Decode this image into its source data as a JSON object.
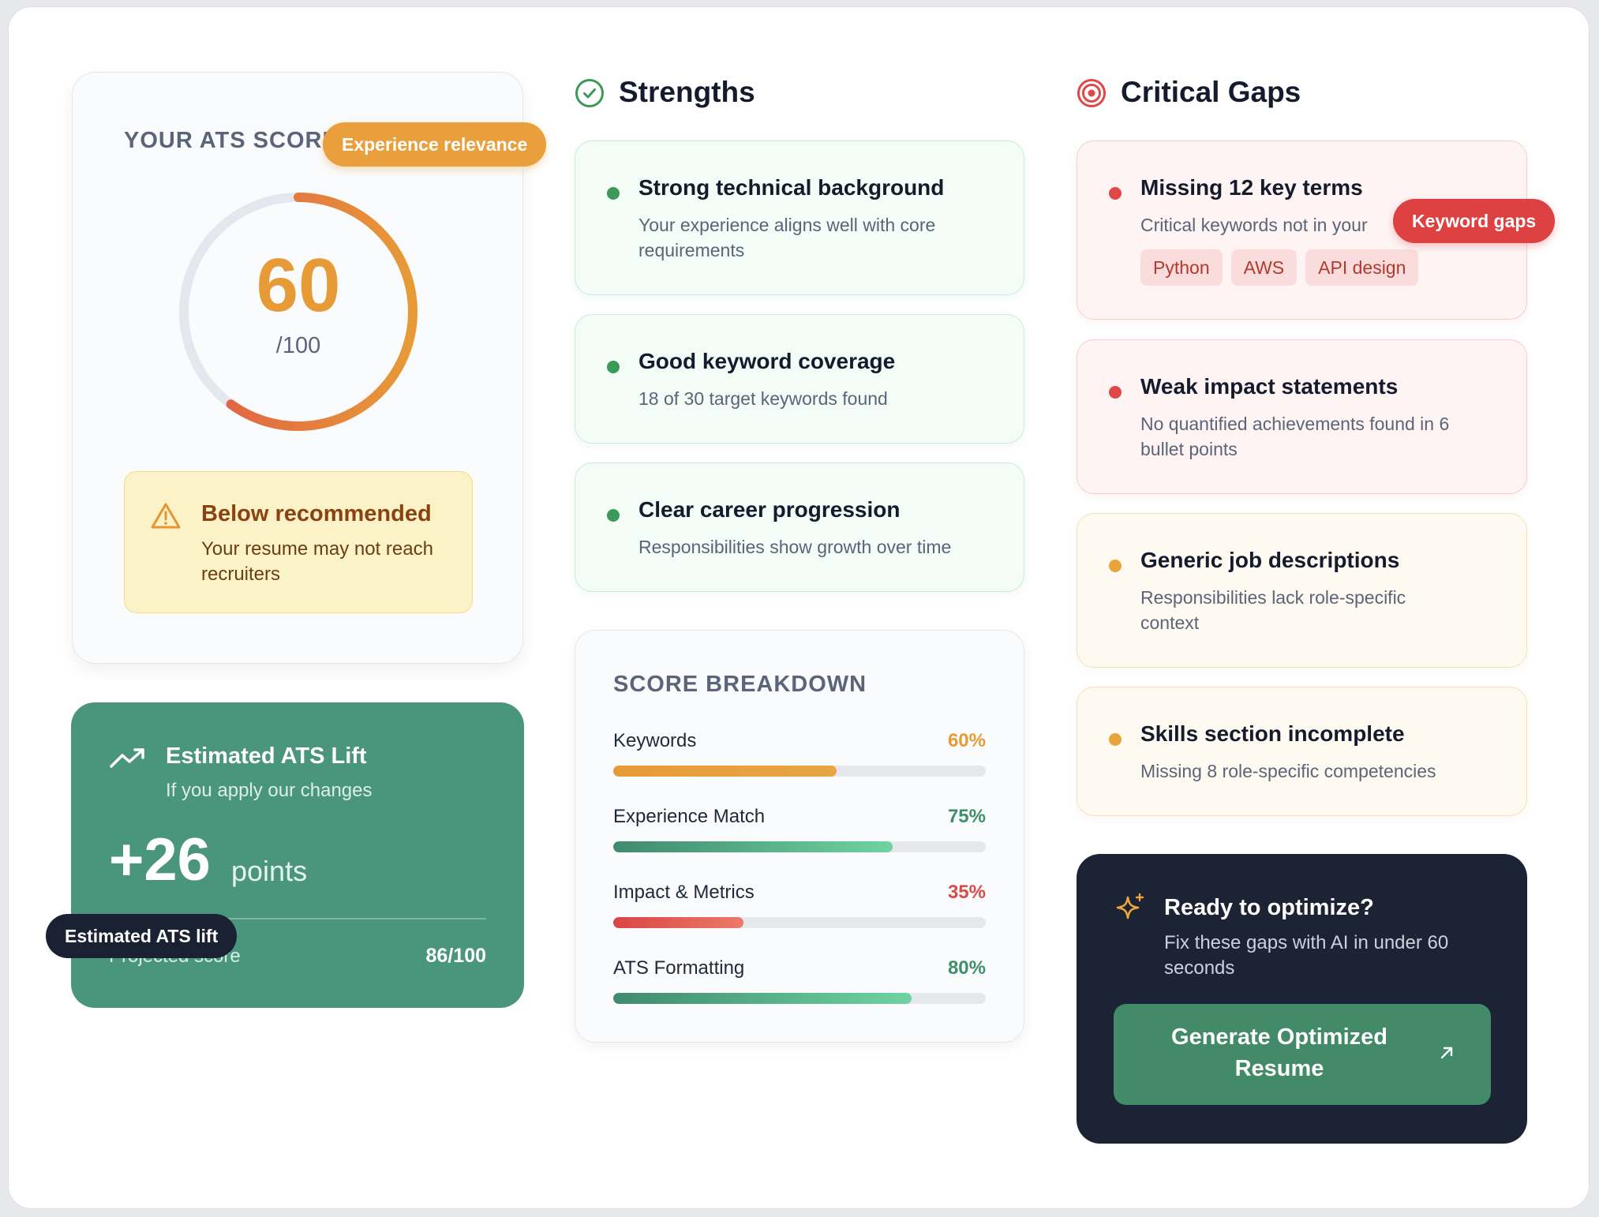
{
  "score_card": {
    "title": "YOUR ATS SCORE",
    "score": "60",
    "score_value": 60,
    "max": "/100",
    "warning_title": "Below recommended",
    "warning_text": "Your resume may not reach recruiters"
  },
  "tooltips": {
    "experience": "Experience relevance",
    "keyword_gaps": "Keyword gaps",
    "ats_lift": "Estimated ATS lift"
  },
  "lift_card": {
    "title": "Estimated ATS Lift",
    "subtitle": "If you apply our changes",
    "value": "+26",
    "unit": "points",
    "projected_label": "Projected score",
    "projected_value": "86/100"
  },
  "strengths": {
    "title": "Strengths",
    "items": [
      {
        "title": "Strong technical background",
        "desc": "Your experience aligns well with core requirements"
      },
      {
        "title": "Good keyword coverage",
        "desc": "18 of 30 target keywords found"
      },
      {
        "title": "Clear career progression",
        "desc": "Responsibilities show growth over time"
      }
    ]
  },
  "breakdown": {
    "title": "SCORE BREAKDOWN",
    "rows": [
      {
        "label": "Keywords",
        "value": "60%",
        "pct": 60,
        "color": "#e79b37"
      },
      {
        "label": "Experience Match",
        "value": "75%",
        "pct": 75,
        "color": "#3f8f6a"
      },
      {
        "label": "Impact & Metrics",
        "value": "35%",
        "pct": 35,
        "color": "#d94a4a"
      },
      {
        "label": "ATS Formatting",
        "value": "80%",
        "pct": 80,
        "color": "#3f8f6a"
      }
    ]
  },
  "gaps": {
    "title": "Critical Gaps",
    "items": [
      {
        "title": "Missing 12 key terms",
        "desc": "Critical keywords not in your",
        "severity": "high",
        "chips": [
          "Python",
          "AWS",
          "API design"
        ]
      },
      {
        "title": "Weak impact statements",
        "desc": "No quantified achievements found in 6 bullet points",
        "severity": "high"
      },
      {
        "title": "Generic job descriptions",
        "desc": "Responsibilities lack role-specific context",
        "severity": "medium"
      },
      {
        "title": "Skills section incomplete",
        "desc": "Missing 8 role-specific competencies",
        "severity": "medium"
      }
    ]
  },
  "cta": {
    "title": "Ready to optimize?",
    "subtitle": "Fix these gaps with AI in under 60 seconds",
    "button": "Generate Optimized Resume"
  },
  "colors": {
    "score": "#e79b37",
    "lift_bg": "#4a967d",
    "cta_bg": "#1c2334",
    "cta_button": "#428a68",
    "success": "#3c9a58",
    "danger": "#e04848",
    "warning": "#e8a33d"
  },
  "icons": {
    "strengths": "check-circle-icon",
    "gaps": "target-icon",
    "warning": "warning-triangle-icon",
    "lift": "trending-up-icon",
    "cta": "sparkles-icon",
    "button": "arrow-up-right-icon"
  }
}
